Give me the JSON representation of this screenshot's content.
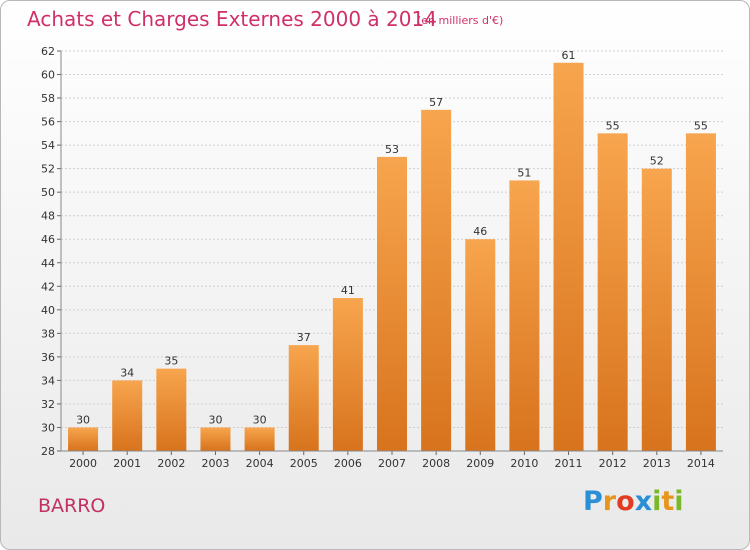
{
  "header": {
    "title": "Achats et Charges Externes 2000 à 2014",
    "unit": "(en milliers d'€)"
  },
  "footer": {
    "place": "BARRO",
    "logo_letters": [
      "P",
      "r",
      "o",
      "x",
      "i",
      "t",
      "i"
    ],
    "logo_colors": [
      "#2a8fd4",
      "#e8951e",
      "#e33b22",
      "#2a8fd4",
      "#7ab829",
      "#e8951e",
      "#7ab829"
    ]
  },
  "colors": {
    "bar_light": "#f7a54e",
    "bar_dark": "#d8731d",
    "title": "#d0306a"
  },
  "chart_data": {
    "type": "bar",
    "title": "Achats et Charges Externes 2000 à 2014",
    "subtitle": "(en milliers d'€)",
    "categories": [
      "2000",
      "2001",
      "2002",
      "2003",
      "2004",
      "2005",
      "2006",
      "2007",
      "2008",
      "2009",
      "2010",
      "2011",
      "2012",
      "2013",
      "2014"
    ],
    "values": [
      30,
      34,
      35,
      30,
      30,
      37,
      41,
      53,
      57,
      46,
      51,
      61,
      55,
      52,
      55
    ],
    "ylim": [
      28,
      62
    ],
    "yticks": [
      28,
      30,
      32,
      34,
      36,
      38,
      40,
      42,
      44,
      46,
      48,
      50,
      52,
      54,
      56,
      58,
      60,
      62
    ],
    "grid": true,
    "data_labels": true
  }
}
